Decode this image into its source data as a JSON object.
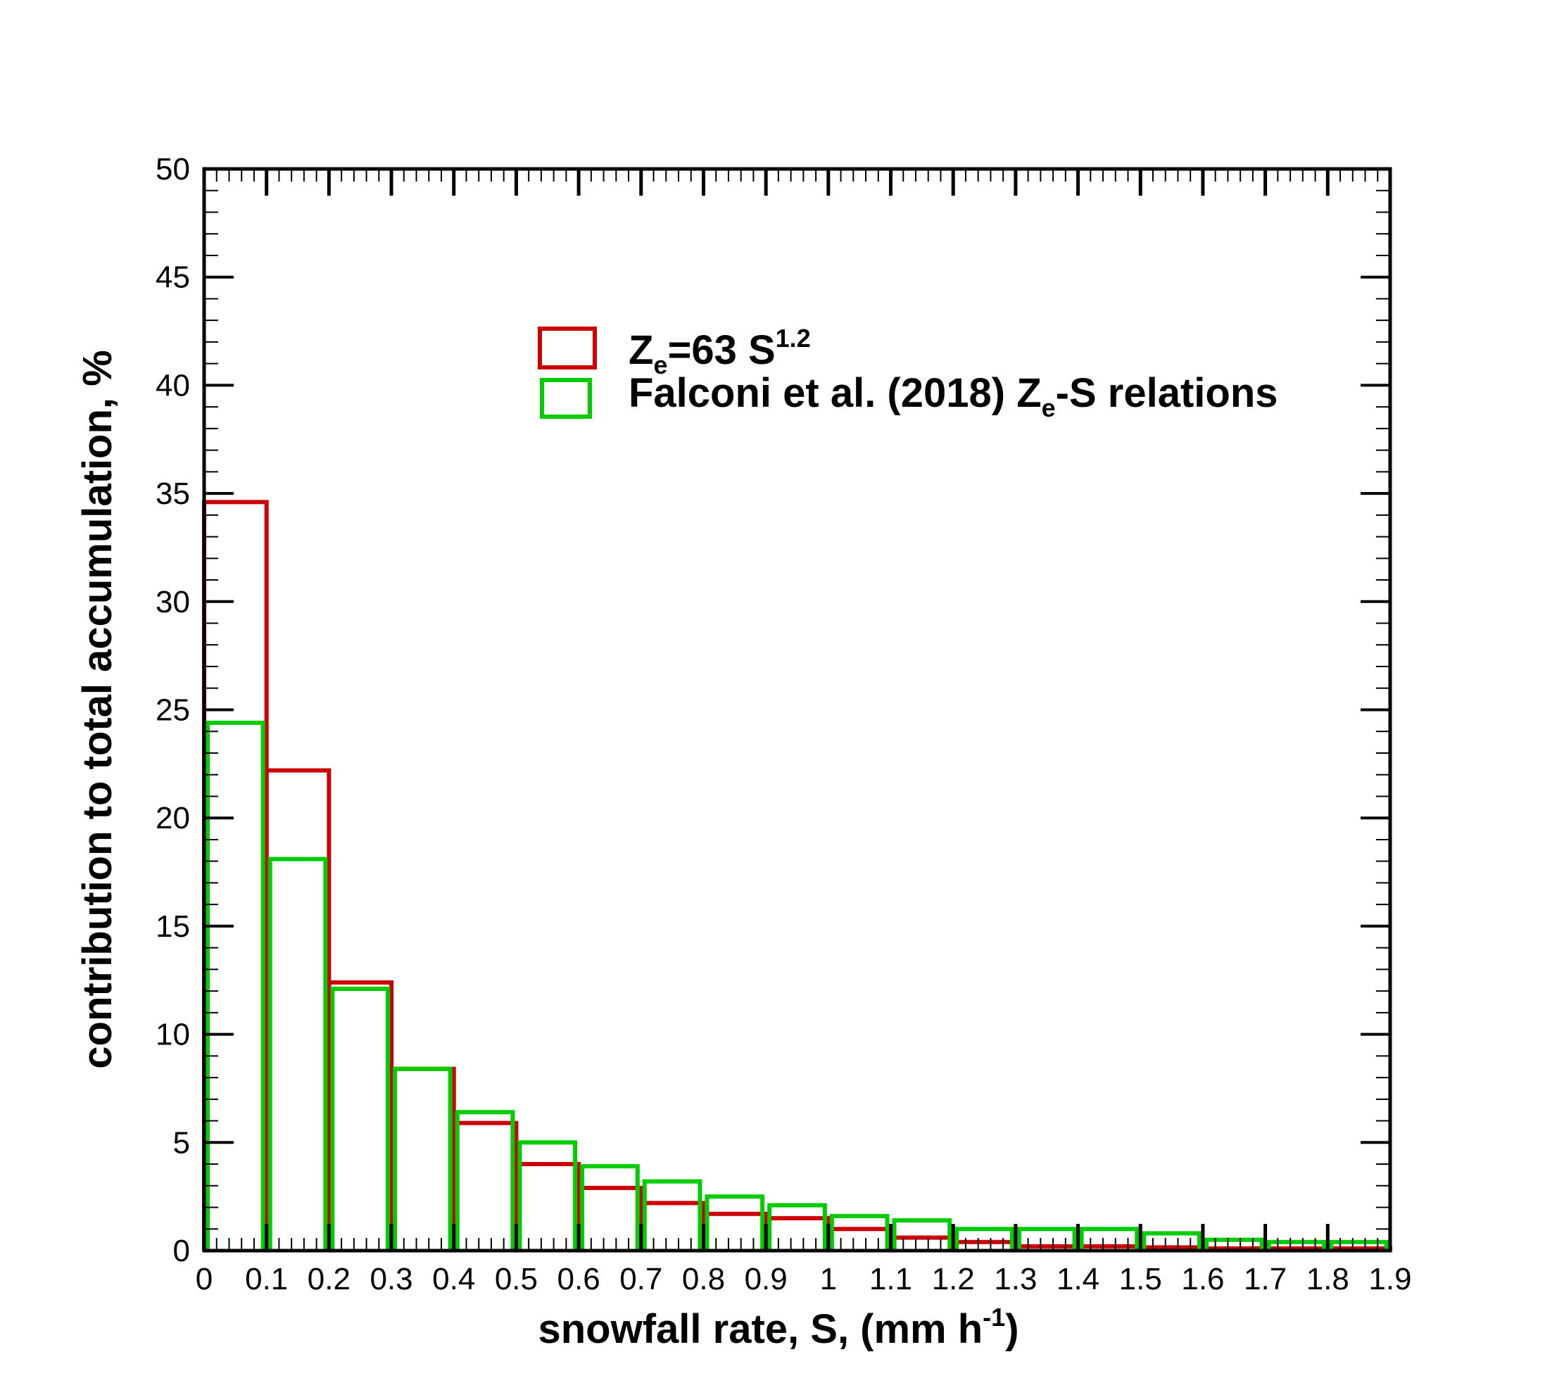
{
  "chart_data": {
    "type": "bar",
    "bin_edges": [
      0,
      0.1,
      0.2,
      0.3,
      0.4,
      0.5,
      0.6,
      0.7,
      0.8,
      0.9,
      1,
      1.1,
      1.2,
      1.3,
      1.4,
      1.5,
      1.6,
      1.7,
      1.8,
      1.9
    ],
    "x_tick_labels": [
      "0",
      "0.1",
      "0.2",
      "0.3",
      "0.4",
      "0.5",
      "0.6",
      "0.7",
      "0.8",
      "0.9",
      "1",
      "1.1",
      "1.2",
      "1.3",
      "1.4",
      "1.5",
      "1.6",
      "1.7",
      "1.8",
      "1.9"
    ],
    "y_tick_labels": [
      "0",
      "5",
      "10",
      "15",
      "20",
      "25",
      "30",
      "35",
      "40",
      "45",
      "50"
    ],
    "xlim": [
      0,
      1.9
    ],
    "ylim": [
      0,
      50
    ],
    "xlabel": "snowfall rate, S, (mm h",
    "xlabel_sup": "-1",
    "xlabel_end": ")",
    "ylabel": "contribution to total accumulation, %",
    "legend_position": "upper-center",
    "grid": false,
    "series": [
      {
        "legend_parts": [
          "Z",
          "e",
          "=63 S",
          "1.2",
          ""
        ],
        "color": "#cc0000",
        "values": [
          34.6,
          22.2,
          12.4,
          8.4,
          5.9,
          4.0,
          2.9,
          2.2,
          1.7,
          1.5,
          1.0,
          0.6,
          0.4,
          0.2,
          0.2,
          0.15,
          0.1,
          0.1,
          0.1
        ]
      },
      {
        "legend_parts": [
          "Falconi et al. (2018) Z",
          "e",
          "-S relations"
        ],
        "color": "#00cc00",
        "values": [
          24.4,
          18.1,
          12.1,
          8.4,
          6.4,
          5.0,
          3.9,
          3.2,
          2.5,
          2.1,
          1.6,
          1.4,
          1.0,
          1.0,
          1.0,
          0.8,
          0.5,
          0.4,
          0.4
        ]
      }
    ]
  }
}
